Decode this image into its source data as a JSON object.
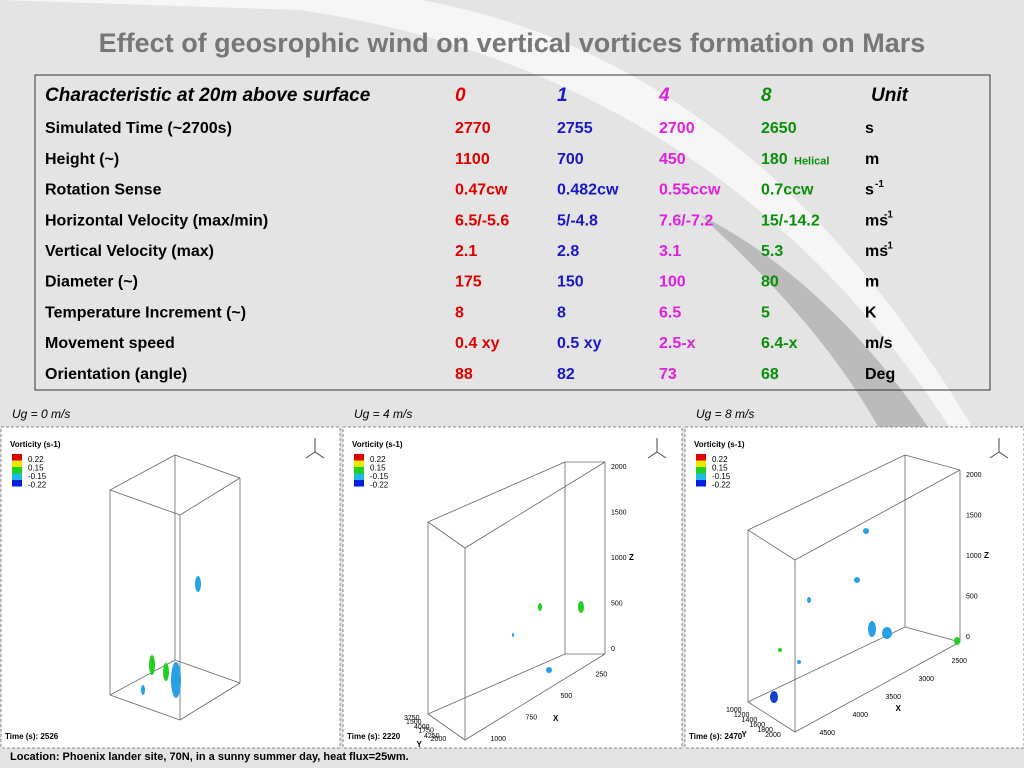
{
  "title": "Effect of geosrophic wind on vertical vortices formation on Mars",
  "table": {
    "header": {
      "label": "Characteristic at 20m above surface",
      "cols": [
        "0",
        "1",
        "4",
        "8"
      ],
      "unit": "Unit"
    },
    "rows": [
      {
        "label": "Simulated Time (~2700s)",
        "values": [
          "2770",
          "2755",
          "2700",
          "2650"
        ],
        "unit": "s"
      },
      {
        "label": "Height (~)",
        "values": [
          "1100",
          "700",
          "450",
          "180"
        ],
        "note": "Helical",
        "unit": "m"
      },
      {
        "label": "Rotation Sense",
        "values": [
          "0.47cw",
          "0.482cw",
          "0.55ccw",
          "0.7ccw"
        ],
        "unit": "s",
        "unit_sup": "-1"
      },
      {
        "label": "Horizontal Velocity (max/min)",
        "values": [
          "6.5/-5.6",
          "5/-4.8",
          "7.6/-7.2",
          "15/-14.2"
        ],
        "unit": "ms",
        "unit_sup": "-1"
      },
      {
        "label": "Vertical Velocity (max)",
        "values": [
          "2.1",
          "2.8",
          "3.1",
          "5.3"
        ],
        "unit": "ms",
        "unit_sup": "-1"
      },
      {
        "label": "Diameter (~)",
        "values": [
          "175",
          "150",
          "100",
          "80"
        ],
        "unit": "m"
      },
      {
        "label": "Temperature Increment (~)",
        "values": [
          "8",
          "8",
          "6.5",
          "5"
        ],
        "unit": "K"
      },
      {
        "label": "Movement speed",
        "values": [
          "0.4 xy",
          "0.5 xy",
          "2.5-x",
          "6.4-x"
        ],
        "unit": "m/s"
      },
      {
        "label": "Orientation (angle)",
        "values": [
          "88",
          "82",
          "73",
          "68"
        ],
        "unit": "Deg"
      }
    ]
  },
  "panels": [
    {
      "label": "Ug = 0 m/s",
      "legend_title": "Vorticity (s-1)",
      "legend": [
        "0.22",
        "0.15",
        "-0.15",
        "-0.22"
      ],
      "time": "Time (s): 2526"
    },
    {
      "label": "Ug = 4 m/s",
      "legend_title": "Vorticity (s-1)",
      "legend": [
        "0.22",
        "0.15",
        "-0.15",
        "-0.22"
      ],
      "time": "Time (s): 2220",
      "z_ticks": [
        "2000",
        "1500",
        "1000",
        "500",
        "0"
      ],
      "x_ticks": [
        "250",
        "500",
        "750",
        "1000"
      ],
      "y_ticks": [
        "1500",
        "1750",
        "2000"
      ],
      "y_ticks2": [
        "3750",
        "4000",
        "4250"
      ],
      "axis_names": [
        "Z",
        "X",
        "Y"
      ]
    },
    {
      "label": "Ug = 8 m/s",
      "legend_title": "Vorticity (s-1)",
      "legend": [
        "0.22",
        "0.15",
        "-0.15",
        "-0.22"
      ],
      "time": "Time (s): 2470",
      "z_ticks": [
        "2000",
        "1500",
        "1000",
        "500",
        "0"
      ],
      "x_ticks": [
        "2500",
        "3000",
        "3500",
        "4000",
        "4500"
      ],
      "y_ticks": [
        "1000",
        "1200",
        "1400",
        "1600",
        "1800",
        "2000"
      ],
      "axis_names": [
        "Z",
        "X",
        "Y"
      ]
    }
  ],
  "footer": "Location: Phoenix lander site, 70N, in a sunny summer day, heat flux=25wm."
}
